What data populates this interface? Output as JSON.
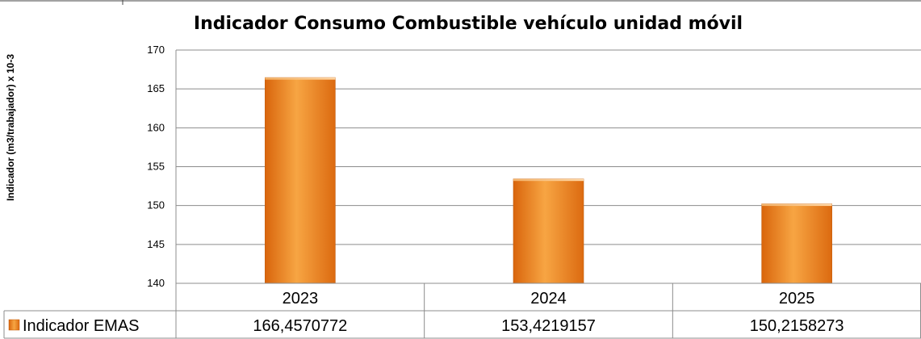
{
  "chart_data": {
    "type": "bar",
    "title": "Indicador Consumo Combustible vehículo unidad móvil",
    "ylabel": "Indicador (m3/trabajador) x 10-3",
    "xlabel": "",
    "categories": [
      "2023",
      "2024",
      "2025"
    ],
    "series": [
      {
        "name": "Indicador EMAS",
        "values": [
          166.4570772,
          153.4219157,
          150.2158273
        ],
        "value_labels": [
          "166,4570772",
          "153,4219157",
          "150,2158273"
        ],
        "color": "#ED8A1E"
      }
    ],
    "ylim": [
      140,
      170
    ],
    "yticks": [
      140,
      145,
      150,
      155,
      160,
      165,
      170
    ],
    "grid": true,
    "legend": "data-table-left"
  }
}
